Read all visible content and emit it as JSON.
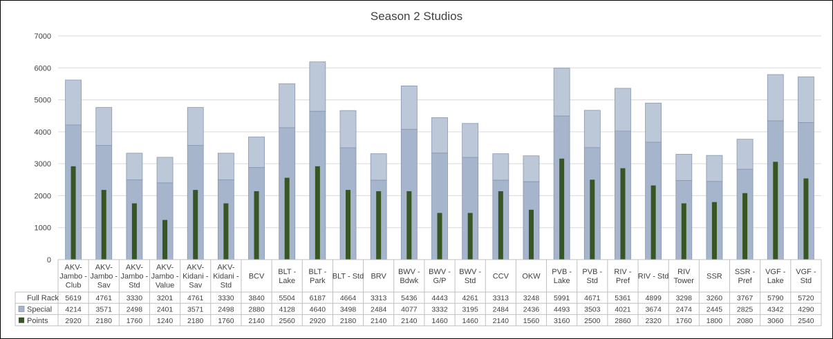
{
  "chart_data": {
    "type": "bar",
    "title": "Season 2 Studios",
    "categories": [
      [
        "AKV-",
        "Jambo -",
        "Club"
      ],
      [
        "AKV-",
        "Jambo -",
        "Sav"
      ],
      [
        "AKV-",
        "Jambo -",
        "Std"
      ],
      [
        "AKV-",
        "Jambo -",
        "Value"
      ],
      [
        "AKV-",
        "Kidani -",
        "Sav"
      ],
      [
        "AKV-",
        "Kidani -",
        "Std"
      ],
      [
        "BCV"
      ],
      [
        "BLT -",
        "Lake"
      ],
      [
        "BLT -",
        "Park"
      ],
      [
        "BLT - Std"
      ],
      [
        "BRV"
      ],
      [
        "BWV -",
        "Bdwk"
      ],
      [
        "BWV -",
        "G/P"
      ],
      [
        "BWV -",
        "Std"
      ],
      [
        "CCV"
      ],
      [
        "OKW"
      ],
      [
        "PVB -",
        "Lake"
      ],
      [
        "PVB -",
        "Std"
      ],
      [
        "RIV -",
        "Pref"
      ],
      [
        "RIV - Std"
      ],
      [
        "RIV",
        "Tower"
      ],
      [
        "SSR"
      ],
      [
        "SSR -",
        "Pref"
      ],
      [
        "VGF -",
        "Lake"
      ],
      [
        "VGF -",
        "Std"
      ]
    ],
    "series": [
      {
        "name": "Full Rack",
        "color": "#bcc8d8",
        "values": [
          5619,
          4761,
          3330,
          3201,
          4761,
          3330,
          3840,
          5504,
          6187,
          4664,
          3313,
          5436,
          4443,
          4261,
          3313,
          3248,
          5991,
          4671,
          5361,
          4899,
          3298,
          3260,
          3767,
          5790,
          5720
        ]
      },
      {
        "name": "Special",
        "color": "#a6b4cc",
        "values": [
          4214,
          3571,
          2498,
          2401,
          3571,
          2498,
          2880,
          4128,
          4640,
          3498,
          2484,
          4077,
          3332,
          3195,
          2484,
          2436,
          4493,
          3503,
          4021,
          3674,
          2474,
          2445,
          2825,
          4342,
          4290
        ]
      },
      {
        "name": "Points",
        "color": "#375623",
        "values": [
          2920,
          2180,
          1760,
          1240,
          2180,
          1760,
          2140,
          2560,
          2920,
          2180,
          2140,
          2140,
          1460,
          1460,
          2140,
          1560,
          3160,
          2500,
          2860,
          2320,
          1760,
          1800,
          2080,
          3060,
          2540
        ]
      }
    ],
    "yticks": [
      "0",
      "1000",
      "2000",
      "3000",
      "4000",
      "5000",
      "6000",
      "7000"
    ],
    "ylim": [
      0,
      7000
    ],
    "grid": true,
    "legend": "data-table"
  }
}
